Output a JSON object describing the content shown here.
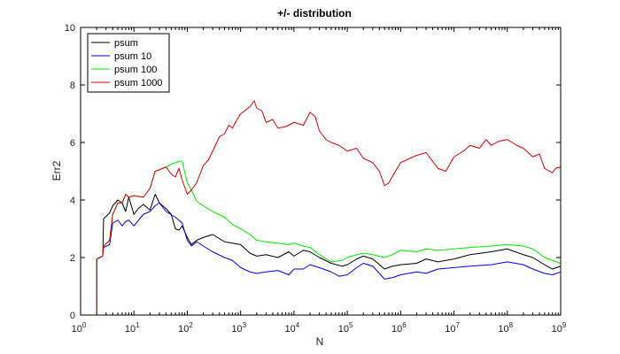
{
  "chart_data": {
    "type": "line",
    "title": "+/- distribution",
    "xlabel": "N",
    "ylabel": "Err2",
    "xscale": "log",
    "xlim": [
      1,
      1000000000
    ],
    "ylim": [
      0,
      10
    ],
    "grid": false,
    "legend_position": "top-left",
    "x_ticks": [
      {
        "base": "10",
        "exp": "0",
        "value": 1
      },
      {
        "base": "10",
        "exp": "1",
        "value": 10
      },
      {
        "base": "10",
        "exp": "2",
        "value": 100
      },
      {
        "base": "10",
        "exp": "3",
        "value": 1000
      },
      {
        "base": "10",
        "exp": "4",
        "value": 10000
      },
      {
        "base": "10",
        "exp": "5",
        "value": 100000
      },
      {
        "base": "10",
        "exp": "6",
        "value": 1000000
      },
      {
        "base": "10",
        "exp": "7",
        "value": 10000000
      },
      {
        "base": "10",
        "exp": "8",
        "value": 100000000
      },
      {
        "base": "10",
        "exp": "9",
        "value": 1000000000
      }
    ],
    "y_ticks": [
      "0",
      "2",
      "4",
      "6",
      "8",
      "10"
    ],
    "series": [
      {
        "name": "psum",
        "color": "#000000",
        "points": [
          [
            1,
            0
          ],
          [
            2,
            0
          ],
          [
            2.01,
            1.95
          ],
          [
            2.6,
            2.05
          ],
          [
            2.7,
            3.35
          ],
          [
            3.5,
            3.55
          ],
          [
            4,
            3.8
          ],
          [
            5,
            4.0
          ],
          [
            6,
            3.9
          ],
          [
            7,
            3.6
          ],
          [
            8,
            4.1
          ],
          [
            10,
            3.5
          ],
          [
            12,
            3.7
          ],
          [
            15,
            3.85
          ],
          [
            20,
            3.65
          ],
          [
            25,
            4.2
          ],
          [
            30,
            3.9
          ],
          [
            40,
            3.7
          ],
          [
            50,
            3.5
          ],
          [
            60,
            3.0
          ],
          [
            70,
            2.95
          ],
          [
            80,
            3.1
          ],
          [
            100,
            2.7
          ],
          [
            120,
            2.45
          ],
          [
            150,
            2.6
          ],
          [
            200,
            2.7
          ],
          [
            300,
            2.8
          ],
          [
            500,
            2.55
          ],
          [
            700,
            2.5
          ],
          [
            1000,
            2.45
          ],
          [
            1500,
            2.15
          ],
          [
            2000,
            2.05
          ],
          [
            3000,
            2.1
          ],
          [
            5000,
            2.0
          ],
          [
            8000,
            2.2
          ],
          [
            10000,
            2.05
          ],
          [
            15000,
            2.25
          ],
          [
            20000,
            2.2
          ],
          [
            30000,
            2.0
          ],
          [
            50000,
            1.8
          ],
          [
            80000,
            1.7
          ],
          [
            100000,
            1.75
          ],
          [
            150000,
            1.95
          ],
          [
            200000,
            2.05
          ],
          [
            300000,
            1.95
          ],
          [
            500000,
            1.6
          ],
          [
            700000,
            1.7
          ],
          [
            1000000,
            1.75
          ],
          [
            2000000,
            1.8
          ],
          [
            3000000,
            1.95
          ],
          [
            5000000,
            1.85
          ],
          [
            10000000,
            1.95
          ],
          [
            20000000,
            2.1
          ],
          [
            50000000,
            2.2
          ],
          [
            100000000,
            2.3
          ],
          [
            200000000,
            2.1
          ],
          [
            300000000,
            2.0
          ],
          [
            500000000,
            1.75
          ],
          [
            700000000,
            1.6
          ],
          [
            1000000000,
            1.7
          ]
        ]
      },
      {
        "name": "psum 10",
        "color": "#0000ff",
        "points": [
          [
            1,
            0
          ],
          [
            2,
            0
          ],
          [
            2.01,
            1.95
          ],
          [
            2.6,
            2.05
          ],
          [
            2.7,
            2.35
          ],
          [
            3.5,
            2.45
          ],
          [
            4,
            3.2
          ],
          [
            5,
            3.3
          ],
          [
            6,
            3.1
          ],
          [
            7,
            3.25
          ],
          [
            8,
            3.3
          ],
          [
            10,
            3.1
          ],
          [
            15,
            3.5
          ],
          [
            20,
            3.6
          ],
          [
            25,
            3.8
          ],
          [
            30,
            3.9
          ],
          [
            40,
            3.6
          ],
          [
            60,
            3.4
          ],
          [
            80,
            3.2
          ],
          [
            100,
            2.6
          ],
          [
            120,
            2.4
          ],
          [
            150,
            2.55
          ],
          [
            200,
            2.4
          ],
          [
            300,
            2.2
          ],
          [
            500,
            2.0
          ],
          [
            700,
            1.9
          ],
          [
            1000,
            1.65
          ],
          [
            1500,
            1.5
          ],
          [
            2000,
            1.45
          ],
          [
            3000,
            1.5
          ],
          [
            5000,
            1.55
          ],
          [
            8000,
            1.4
          ],
          [
            10000,
            1.6
          ],
          [
            15000,
            1.6
          ],
          [
            20000,
            1.75
          ],
          [
            30000,
            1.65
          ],
          [
            50000,
            1.5
          ],
          [
            70000,
            1.35
          ],
          [
            100000,
            1.4
          ],
          [
            150000,
            1.65
          ],
          [
            200000,
            1.8
          ],
          [
            300000,
            1.7
          ],
          [
            500000,
            1.25
          ],
          [
            700000,
            1.3
          ],
          [
            1000000,
            1.4
          ],
          [
            2000000,
            1.5
          ],
          [
            3000000,
            1.45
          ],
          [
            5000000,
            1.6
          ],
          [
            10000000,
            1.65
          ],
          [
            20000000,
            1.7
          ],
          [
            50000000,
            1.75
          ],
          [
            100000000,
            1.85
          ],
          [
            200000000,
            1.75
          ],
          [
            300000000,
            1.6
          ],
          [
            500000000,
            1.45
          ],
          [
            700000000,
            1.4
          ],
          [
            1000000000,
            1.5
          ]
        ]
      },
      {
        "name": "psum 100",
        "color": "#00ee00",
        "points": [
          [
            1,
            0
          ],
          [
            2,
            0
          ],
          [
            2.01,
            1.95
          ],
          [
            2.6,
            2.05
          ],
          [
            2.7,
            2.4
          ],
          [
            3.5,
            2.6
          ],
          [
            4,
            3.5
          ],
          [
            5,
            3.9
          ],
          [
            6,
            3.9
          ],
          [
            7,
            4.2
          ],
          [
            8,
            4.1
          ],
          [
            10,
            4.15
          ],
          [
            15,
            4.1
          ],
          [
            20,
            4.4
          ],
          [
            25,
            5.0
          ],
          [
            30,
            5.05
          ],
          [
            40,
            5.15
          ],
          [
            50,
            5.25
          ],
          [
            60,
            5.3
          ],
          [
            70,
            5.35
          ],
          [
            80,
            5.35
          ],
          [
            100,
            4.6
          ],
          [
            120,
            4.35
          ],
          [
            150,
            3.95
          ],
          [
            200,
            3.8
          ],
          [
            300,
            3.6
          ],
          [
            500,
            3.4
          ],
          [
            700,
            3.15
          ],
          [
            1000,
            3.0
          ],
          [
            1500,
            2.8
          ],
          [
            2000,
            2.6
          ],
          [
            3000,
            2.55
          ],
          [
            5000,
            2.5
          ],
          [
            8000,
            2.45
          ],
          [
            10000,
            2.5
          ],
          [
            15000,
            2.4
          ],
          [
            20000,
            2.35
          ],
          [
            30000,
            2.1
          ],
          [
            50000,
            1.85
          ],
          [
            80000,
            1.9
          ],
          [
            100000,
            2.0
          ],
          [
            150000,
            2.1
          ],
          [
            200000,
            2.15
          ],
          [
            300000,
            2.1
          ],
          [
            500000,
            2.0
          ],
          [
            700000,
            2.1
          ],
          [
            1000000,
            2.25
          ],
          [
            2000000,
            2.2
          ],
          [
            3000000,
            2.3
          ],
          [
            5000000,
            2.25
          ],
          [
            10000000,
            2.3
          ],
          [
            20000000,
            2.35
          ],
          [
            50000000,
            2.4
          ],
          [
            100000000,
            2.45
          ],
          [
            200000000,
            2.4
          ],
          [
            300000000,
            2.3
          ],
          [
            500000000,
            2.0
          ],
          [
            700000000,
            1.9
          ],
          [
            1000000000,
            1.8
          ]
        ]
      },
      {
        "name": "psum 1000",
        "color": "#dd0000",
        "points": [
          [
            1,
            0
          ],
          [
            2,
            0
          ],
          [
            2.01,
            1.95
          ],
          [
            2.6,
            2.05
          ],
          [
            2.7,
            2.4
          ],
          [
            3.5,
            2.6
          ],
          [
            4,
            3.5
          ],
          [
            5,
            3.9
          ],
          [
            6,
            3.9
          ],
          [
            7,
            4.2
          ],
          [
            8,
            4.1
          ],
          [
            10,
            4.15
          ],
          [
            15,
            4.1
          ],
          [
            20,
            4.4
          ],
          [
            25,
            5.0
          ],
          [
            30,
            5.05
          ],
          [
            40,
            5.15
          ],
          [
            50,
            4.9
          ],
          [
            60,
            4.8
          ],
          [
            70,
            5.1
          ],
          [
            80,
            4.7
          ],
          [
            100,
            4.2
          ],
          [
            120,
            4.35
          ],
          [
            150,
            4.6
          ],
          [
            200,
            5.2
          ],
          [
            250,
            5.4
          ],
          [
            300,
            5.7
          ],
          [
            400,
            6.2
          ],
          [
            500,
            6.3
          ],
          [
            600,
            6.6
          ],
          [
            700,
            6.5
          ],
          [
            800,
            6.7
          ],
          [
            1000,
            7.0
          ],
          [
            1200,
            7.1
          ],
          [
            1500,
            7.25
          ],
          [
            1800,
            7.45
          ],
          [
            2000,
            7.2
          ],
          [
            2500,
            7.1
          ],
          [
            3000,
            6.7
          ],
          [
            4000,
            6.8
          ],
          [
            5000,
            6.5
          ],
          [
            7000,
            6.55
          ],
          [
            10000,
            6.7
          ],
          [
            15000,
            6.6
          ],
          [
            20000,
            7.05
          ],
          [
            25000,
            6.9
          ],
          [
            30000,
            6.4
          ],
          [
            40000,
            6.1
          ],
          [
            50000,
            6.0
          ],
          [
            70000,
            5.9
          ],
          [
            100000,
            5.7
          ],
          [
            150000,
            5.8
          ],
          [
            200000,
            5.45
          ],
          [
            300000,
            5.3
          ],
          [
            400000,
            5.0
          ],
          [
            500000,
            4.5
          ],
          [
            600000,
            4.6
          ],
          [
            800000,
            5.0
          ],
          [
            1000000,
            5.3
          ],
          [
            1500000,
            5.45
          ],
          [
            2000000,
            5.55
          ],
          [
            3000000,
            5.65
          ],
          [
            5000000,
            5.1
          ],
          [
            7000000,
            5.0
          ],
          [
            10000000,
            5.5
          ],
          [
            15000000,
            5.7
          ],
          [
            20000000,
            5.9
          ],
          [
            30000000,
            5.8
          ],
          [
            40000000,
            6.1
          ],
          [
            50000000,
            5.9
          ],
          [
            70000000,
            6.05
          ],
          [
            100000000,
            6.1
          ],
          [
            150000000,
            5.9
          ],
          [
            200000000,
            5.8
          ],
          [
            300000000,
            5.5
          ],
          [
            400000000,
            5.6
          ],
          [
            500000000,
            5.1
          ],
          [
            700000000,
            4.95
          ],
          [
            800000000,
            5.1
          ],
          [
            1000000000,
            5.15
          ]
        ]
      }
    ]
  }
}
